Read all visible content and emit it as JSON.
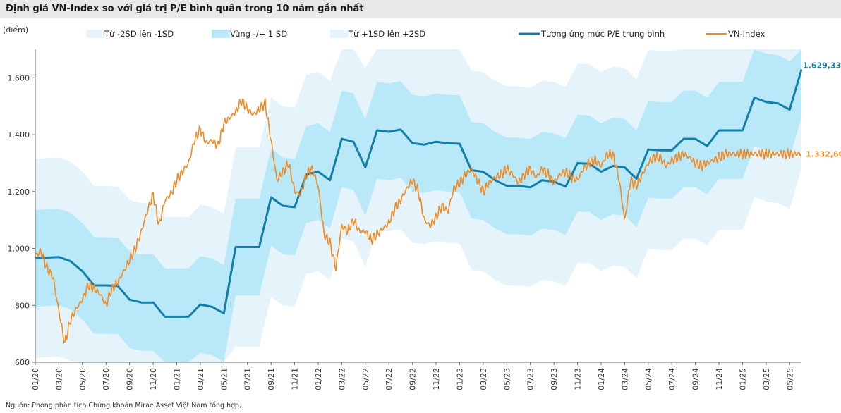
{
  "title": "Định giá VN-Index so với giá trị P/E bình quân trong 10 năm gần nhất",
  "source": "Nguồn: Phòng phân tích Chứng khoán Mirae Asset Việt Nam tổng hợp,",
  "colors": {
    "band_outer": "#e5f4fb",
    "band_inner": "#b9e9f9",
    "pe_line": "#137fa8",
    "vnindex": "#f08a24",
    "pe_label": "#137fa8",
    "vn_label": "#f08a24"
  },
  "chart_data": {
    "type": "line",
    "ylabel": "(điểm)",
    "ylim": [
      600,
      1700
    ],
    "y_ticks": [
      "600",
      "800",
      "1.000",
      "1.200",
      "1.400",
      "1.600"
    ],
    "x_ticks": [
      "01/20",
      "03/20",
      "05/20",
      "07/20",
      "09/20",
      "11/20",
      "01/21",
      "03/21",
      "05/21",
      "07/21",
      "09/21",
      "11/21",
      "01/22",
      "03/22",
      "05/22",
      "07/22",
      "09/22",
      "11/22",
      "01/23",
      "03/23",
      "05/23",
      "07/23",
      "09/23",
      "11/23",
      "01/24",
      "03/24",
      "05/24",
      "07/24",
      "09/24",
      "11/24",
      "01/25",
      "03/25",
      "05/25"
    ],
    "x_range_months": [
      0,
      65
    ],
    "legend": [
      {
        "key": "band_outer",
        "label": "Từ -2SD lên -1SD"
      },
      {
        "key": "band_inner",
        "label": "Vùng -/+ 1 SD"
      },
      {
        "key": "band_outer",
        "label": "Từ +1SD lên +2SD"
      },
      {
        "key": "pe_line",
        "label": "Tương ứng mức P/E trung bình"
      },
      {
        "key": "vnindex",
        "label": "VN-Index"
      }
    ],
    "series": [
      {
        "name": "Tương ứng mức P/E trung bình",
        "x": [
          0,
          1,
          2,
          3,
          4,
          5,
          6,
          7,
          8,
          9,
          10,
          11,
          12,
          13,
          14,
          15,
          16,
          17,
          18,
          19,
          20,
          21,
          22,
          23,
          24,
          25,
          26,
          27,
          28,
          29,
          30,
          31,
          32,
          33,
          34,
          35,
          36,
          37,
          38,
          39,
          40,
          41,
          42,
          43,
          44,
          45,
          46,
          47,
          48,
          49,
          50,
          51,
          52,
          53,
          54,
          55,
          56,
          57,
          58,
          59,
          60,
          61,
          62,
          63,
          64,
          65
        ],
        "values": [
          965,
          968,
          970,
          955,
          920,
          870,
          870,
          868,
          820,
          810,
          810,
          760,
          760,
          760,
          803,
          795,
          772,
          1005,
          1005,
          1005,
          1180,
          1150,
          1145,
          1260,
          1270,
          1240,
          1385,
          1375,
          1285,
          1415,
          1410,
          1418,
          1370,
          1365,
          1375,
          1370,
          1368,
          1275,
          1270,
          1240,
          1220,
          1220,
          1215,
          1240,
          1235,
          1218,
          1300,
          1298,
          1270,
          1290,
          1285,
          1245,
          1348,
          1345,
          1345,
          1385,
          1385,
          1360,
          1415,
          1415,
          1415,
          1530,
          1515,
          1510,
          1488,
          1629.33
        ]
      },
      {
        "name": "VN-Index",
        "x": [
          0,
          0.5,
          1,
          1.5,
          2,
          2.5,
          3,
          3.5,
          4,
          4.5,
          5,
          5.5,
          6,
          6.5,
          7,
          7.5,
          8,
          8.5,
          9,
          9.5,
          10,
          10.5,
          11,
          11.5,
          12,
          12.5,
          13,
          13.5,
          14,
          14.5,
          15,
          15.5,
          16,
          16.5,
          17,
          17.5,
          18,
          18.5,
          19,
          19.5,
          20,
          20.5,
          21,
          21.5,
          22,
          22.5,
          23,
          23.5,
          24,
          24.5,
          25,
          25.5,
          26,
          26.5,
          27,
          27.5,
          28,
          28.5,
          29,
          29.5,
          30,
          30.5,
          31,
          31.5,
          32,
          32.5,
          33,
          33.5,
          34,
          34.5,
          35,
          35.5,
          36,
          36.5,
          37,
          37.5,
          38,
          38.5,
          39,
          39.5,
          40,
          40.5,
          41,
          41.5,
          42,
          42.5,
          43,
          43.5,
          44,
          44.5,
          45,
          45.5,
          46,
          46.5,
          47,
          47.5,
          48,
          48.5,
          49,
          49.5,
          50,
          50.5,
          51,
          51.5,
          52,
          52.5,
          53,
          53.5,
          54,
          54.5,
          55,
          55.5,
          56,
          56.5,
          57,
          57.5,
          58,
          58.5,
          59,
          59.5,
          60,
          60.5,
          61,
          61.5,
          62,
          62.5,
          63,
          63.5,
          64,
          64.5,
          65
        ],
        "values": [
          975,
          990,
          930,
          900,
          780,
          665,
          750,
          790,
          820,
          870,
          860,
          840,
          800,
          860,
          880,
          920,
          960,
          1000,
          1060,
          1130,
          1190,
          1080,
          1170,
          1190,
          1240,
          1270,
          1300,
          1380,
          1420,
          1370,
          1380,
          1360,
          1440,
          1460,
          1480,
          1520,
          1490,
          1470,
          1490,
          1510,
          1380,
          1240,
          1270,
          1300,
          1200,
          1190,
          1260,
          1280,
          1220,
          1050,
          1020,
          930,
          1080,
          1060,
          1100,
          1060,
          1060,
          1030,
          1050,
          1070,
          1090,
          1140,
          1170,
          1210,
          1240,
          1200,
          1100,
          1080,
          1110,
          1150,
          1130,
          1210,
          1230,
          1260,
          1280,
          1240,
          1200,
          1230,
          1250,
          1260,
          1280,
          1260,
          1230,
          1260,
          1280,
          1250,
          1280,
          1260,
          1230,
          1260,
          1270,
          1250,
          1240,
          1280,
          1300,
          1310,
          1290,
          1330,
          1330,
          1250,
          1100,
          1240,
          1220,
          1260,
          1300,
          1320,
          1320,
          1290,
          1310,
          1320,
          1332.6,
          1320,
          1300,
          1290,
          1300,
          1310,
          1320,
          1332.6,
          1332.6,
          1332.6,
          1332.6,
          1332.6,
          1332.6,
          1332.6,
          1332.6,
          1332.6,
          1332.6,
          1332.6,
          1332.6,
          1332.6,
          1332.6
        ]
      }
    ],
    "bands": {
      "inner_halfwidth": 170,
      "outer_halfwidth": 350
    },
    "end_labels": {
      "pe_line": "1.629,33",
      "vnindex": "1.332,60"
    }
  }
}
